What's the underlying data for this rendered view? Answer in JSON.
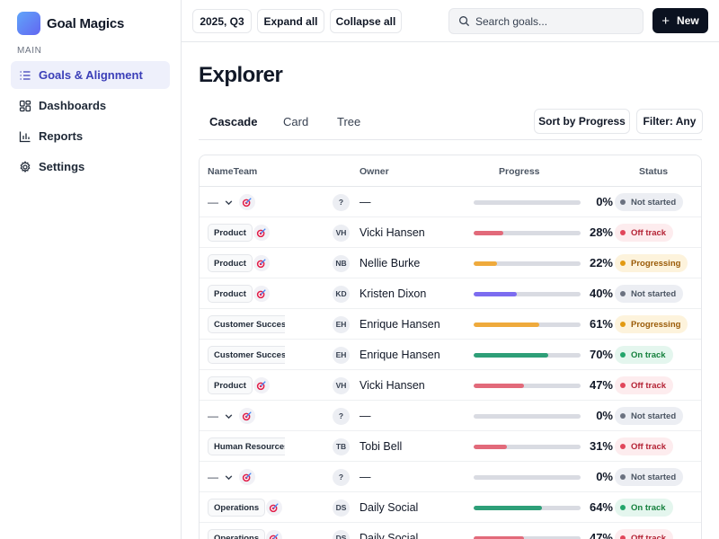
{
  "app": {
    "name": "Goal Magics"
  },
  "sidebar": {
    "section": "MAIN",
    "items": [
      {
        "label": "Goals & Alignment",
        "icon": "goals-list-icon",
        "active": true
      },
      {
        "label": "Dashboards",
        "icon": "dashboard-grid-icon",
        "active": false
      },
      {
        "label": "Reports",
        "icon": "bar-chart-icon",
        "active": false
      },
      {
        "label": "Settings",
        "icon": "gear-icon",
        "active": false
      }
    ]
  },
  "toolbar": {
    "quarter": "2025, Q3",
    "expand_all": "Expand all",
    "collapse_all": "Collapse all",
    "search_placeholder": "Search goals...",
    "new_label": "New"
  },
  "page": {
    "title": "Explorer",
    "tabs": [
      {
        "label": "Cascade",
        "active": true
      },
      {
        "label": "Card",
        "active": false
      },
      {
        "label": "Tree",
        "active": false
      }
    ],
    "sort_label": "Sort by Progress",
    "filter_label": "Filter: Any"
  },
  "table": {
    "headers": {
      "name_team": "NameTeam",
      "owner": "Owner",
      "progress": "Progress",
      "status": "Status"
    },
    "rows": [
      {
        "kind": "parent",
        "dash": "—",
        "team": "",
        "initials": "?",
        "owner": "—",
        "progress": 0,
        "progress_label": "0%",
        "status": "Not started",
        "status_key": "not"
      },
      {
        "kind": "child",
        "team": "Product",
        "initials": "VH",
        "owner": "Vicki Hansen",
        "progress": 28,
        "progress_label": "28%",
        "status": "Off track",
        "status_key": "off"
      },
      {
        "kind": "child",
        "team": "Product",
        "initials": "NB",
        "owner": "Nellie Burke",
        "progress": 22,
        "progress_label": "22%",
        "status": "Progressing",
        "status_key": "prog"
      },
      {
        "kind": "child",
        "team": "Product",
        "initials": "KD",
        "owner": "Kristen Dixon",
        "progress": 40,
        "progress_label": "40%",
        "status": "Not started",
        "status_key": "not"
      },
      {
        "kind": "child",
        "team": "Customer Success",
        "initials": "EH",
        "owner": "Enrique Hansen",
        "progress": 61,
        "progress_label": "61%",
        "status": "Progressing",
        "status_key": "prog"
      },
      {
        "kind": "child",
        "team": "Customer Success",
        "initials": "EH",
        "owner": "Enrique Hansen",
        "progress": 70,
        "progress_label": "70%",
        "status": "On track",
        "status_key": "on"
      },
      {
        "kind": "child",
        "team": "Product",
        "initials": "VH",
        "owner": "Vicki Hansen",
        "progress": 47,
        "progress_label": "47%",
        "status": "Off track",
        "status_key": "off"
      },
      {
        "kind": "parent",
        "dash": "—",
        "team": "",
        "initials": "?",
        "owner": "—",
        "progress": 0,
        "progress_label": "0%",
        "status": "Not started",
        "status_key": "not"
      },
      {
        "kind": "child",
        "team": "Human Resources",
        "initials": "TB",
        "owner": "Tobi Bell",
        "progress": 31,
        "progress_label": "31%",
        "status": "Off track",
        "status_key": "off"
      },
      {
        "kind": "parent",
        "dash": "—",
        "team": "",
        "initials": "?",
        "owner": "—",
        "progress": 0,
        "progress_label": "0%",
        "status": "Not started",
        "status_key": "not"
      },
      {
        "kind": "child",
        "team": "Operations",
        "initials": "DS",
        "owner": "Daily Social",
        "progress": 64,
        "progress_label": "64%",
        "status": "On track",
        "status_key": "on"
      },
      {
        "kind": "child",
        "team": "Operations",
        "initials": "DS",
        "owner": "Daily Social",
        "progress": 47,
        "progress_label": "47%",
        "status": "Off track",
        "status_key": "off"
      }
    ]
  },
  "colors": {
    "brand": "#6366f1",
    "active_nav_bg": "#eef0fb",
    "status": {
      "off": {
        "bg": "#fdecee",
        "text": "#b42335",
        "dot": "#e1465b",
        "bar": "#e26a7a"
      },
      "prog": {
        "bg": "#fdf3dc",
        "text": "#9a5b07",
        "dot": "#e29a12",
        "bar": "#efaa3c"
      },
      "not": {
        "bg": "#eceef3",
        "text": "#4b5563",
        "dot": "#6b7280",
        "bar": "#7c6cf0"
      },
      "on": {
        "bg": "#e4f6ee",
        "text": "#15803d",
        "dot": "#23a56b",
        "bar": "#2e9f78"
      }
    }
  }
}
